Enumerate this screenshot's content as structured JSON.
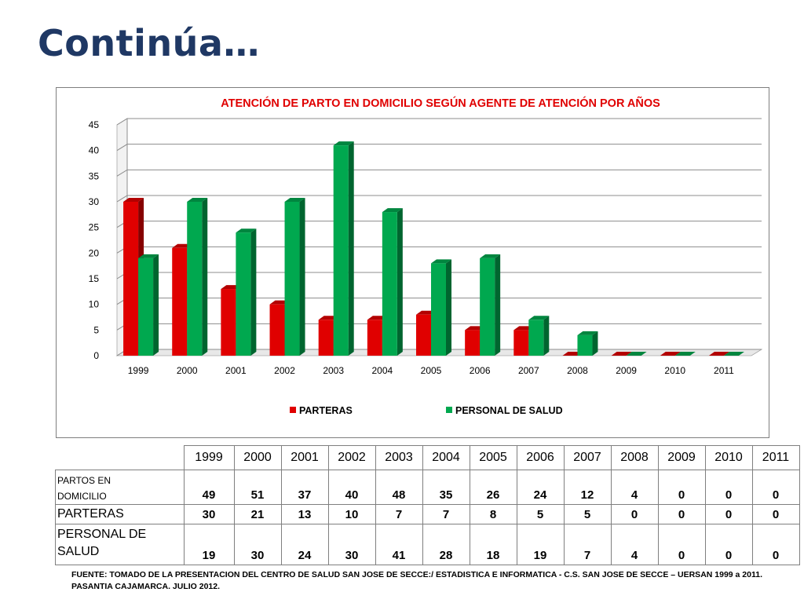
{
  "slide": {
    "title": "Continúa…"
  },
  "chart_data": {
    "type": "bar",
    "title": "ATENCIÓN DE PARTO EN DOMICILIO SEGÚN  AGENTE DE ATENCIÓN POR AÑOS",
    "categories": [
      "1999",
      "2000",
      "2001",
      "2002",
      "2003",
      "2004",
      "2005",
      "2006",
      "2007",
      "2008",
      "2009",
      "2010",
      "2011"
    ],
    "series": [
      {
        "name": "PARTERAS",
        "values": [
          30,
          21,
          13,
          10,
          7,
          7,
          8,
          5,
          5,
          0,
          0,
          0,
          0
        ],
        "color": "#e00000"
      },
      {
        "name": "PERSONAL DE SALUD",
        "values": [
          19,
          30,
          24,
          30,
          41,
          28,
          18,
          19,
          7,
          4,
          0,
          0,
          0
        ],
        "color": "#00a84f"
      }
    ],
    "ylim": [
      0,
      45
    ],
    "yticks": [
      "0",
      "5",
      "10",
      "15",
      "20",
      "25",
      "30",
      "35",
      "40",
      "45"
    ],
    "grid": true,
    "legend_position": "bottom",
    "style": "3d"
  },
  "table": {
    "years": [
      "1999",
      "2000",
      "2001",
      "2002",
      "2003",
      "2004",
      "2005",
      "2006",
      "2007",
      "2008",
      "2009",
      "2010",
      "2011"
    ],
    "rows": [
      {
        "label_lines": [
          "PARTOS EN",
          "DOMICILIO"
        ],
        "values": [
          "49",
          "51",
          "37",
          "40",
          "48",
          "35",
          "26",
          "24",
          "12",
          "4",
          "0",
          "0",
          "0"
        ]
      },
      {
        "label_lines": [
          "PARTERAS"
        ],
        "values": [
          "30",
          "21",
          "13",
          "10",
          "7",
          "7",
          "8",
          "5",
          "5",
          "0",
          "0",
          "0",
          "0"
        ]
      },
      {
        "label_lines": [
          "PERSONAL DE",
          "SALUD"
        ],
        "values": [
          "19",
          "30",
          "24",
          "30",
          "41",
          "28",
          "18",
          "19",
          "7",
          "4",
          "0",
          "0",
          "0"
        ]
      }
    ]
  },
  "source_note": {
    "line1": "FUENTE: TOMADO DE LA PRESENTACION DEL  CENTRO DE SALUD SAN JOSE DE SECCE:/ ESTADISTICA E  INFORMATICA  - C.S. SAN JOSE DE SECCE – UERSAN 1999 a 2011.",
    "line2": "PASANTIA CAJAMARCA. JULIO 2012."
  }
}
